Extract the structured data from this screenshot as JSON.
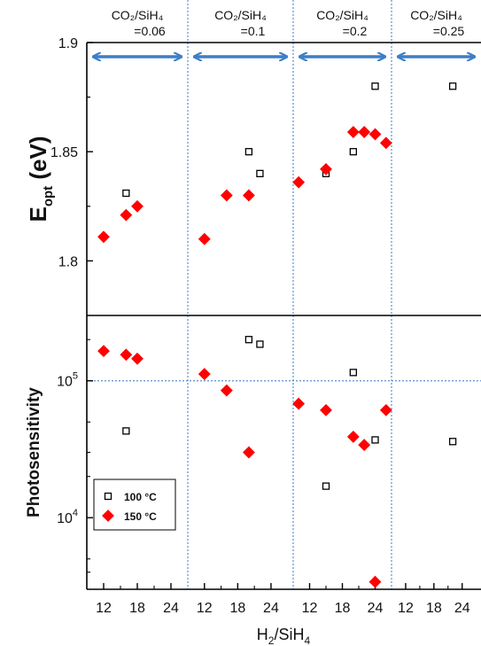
{
  "chart_data": {
    "type": "scatter",
    "x_axis_label_base": "H",
    "x_axis_label_sub": "2",
    "x_axis_label_sep": "/SiH",
    "x_axis_label_sub2": "4",
    "panels": [
      {
        "label_line1": "CO₂/SiH₄",
        "label_line2": "=0.06",
        "x_ticks": [
          "12",
          "18",
          "24"
        ],
        "x_range": [
          9,
          27
        ]
      },
      {
        "label_line1": "CO₂/SiH₄",
        "label_line2": "=0.1",
        "x_ticks": [
          "12",
          "18",
          "24"
        ],
        "x_range": [
          9,
          28
        ]
      },
      {
        "label_line1": "CO₂/SiH₄",
        "label_line2": "=0.2",
        "x_ticks": [
          "12",
          "18",
          "24"
        ],
        "x_range": [
          9,
          27
        ]
      },
      {
        "label_line1": "CO₂/SiH₄",
        "label_line2": "=0.25",
        "x_ticks": [
          "12",
          "18",
          "24"
        ],
        "x_range": [
          9,
          28
        ]
      }
    ],
    "top": {
      "ylabel_main": "E",
      "ylabel_sub": "opt",
      "ylabel_unit": " (eV)",
      "ylim": [
        1.775,
        1.9
      ],
      "y_ticks": [
        "1.8",
        "1.85",
        "1.9"
      ],
      "y_tick_values": [
        1.8,
        1.85,
        1.9
      ],
      "series": [
        {
          "name": "100 °C",
          "marker": "open-square",
          "color": "#000000",
          "points": [
            {
              "panel": 0,
              "x": 16,
              "y": 1.831
            },
            {
              "panel": 1,
              "x": 20,
              "y": 1.85
            },
            {
              "panel": 1,
              "x": 22,
              "y": 1.84
            },
            {
              "panel": 2,
              "x": 15,
              "y": 1.84
            },
            {
              "panel": 2,
              "x": 20,
              "y": 1.85
            },
            {
              "panel": 2,
              "x": 24,
              "y": 1.88
            },
            {
              "panel": 3,
              "x": 22,
              "y": 1.88
            }
          ]
        },
        {
          "name": "150 °C",
          "marker": "filled-diamond",
          "color": "#ff0000",
          "points": [
            {
              "panel": 0,
              "x": 12,
              "y": 1.811
            },
            {
              "panel": 0,
              "x": 16,
              "y": 1.821
            },
            {
              "panel": 0,
              "x": 18,
              "y": 1.825
            },
            {
              "panel": 1,
              "x": 12,
              "y": 1.81
            },
            {
              "panel": 1,
              "x": 16,
              "y": 1.83
            },
            {
              "panel": 1,
              "x": 20,
              "y": 1.83
            },
            {
              "panel": 2,
              "x": 10,
              "y": 1.836
            },
            {
              "panel": 2,
              "x": 15,
              "y": 1.842
            },
            {
              "panel": 2,
              "x": 20,
              "y": 1.859
            },
            {
              "panel": 2,
              "x": 22,
              "y": 1.859
            },
            {
              "panel": 2,
              "x": 24,
              "y": 1.858
            },
            {
              "panel": 2,
              "x": 26,
              "y": 1.854
            }
          ]
        }
      ]
    },
    "bottom": {
      "ylabel": "Photosensitivity",
      "yscale": "log",
      "ylim": [
        3000,
        300000
      ],
      "y_ticks_base": [
        "10",
        "10"
      ],
      "y_ticks_exp": [
        "5",
        "4"
      ],
      "y_tick_values": [
        100000,
        10000
      ],
      "series": [
        {
          "name": "100 °C",
          "marker": "open-square",
          "color": "#000000",
          "points": [
            {
              "panel": 0,
              "x": 16,
              "y": 43000
            },
            {
              "panel": 1,
              "x": 20,
              "y": 200000
            },
            {
              "panel": 1,
              "x": 22,
              "y": 185000
            },
            {
              "panel": 2,
              "x": 15,
              "y": 17000
            },
            {
              "panel": 2,
              "x": 20,
              "y": 115000
            },
            {
              "panel": 2,
              "x": 24,
              "y": 37000
            },
            {
              "panel": 3,
              "x": 22,
              "y": 36000
            }
          ]
        },
        {
          "name": "150 °C",
          "marker": "filled-diamond",
          "color": "#ff0000",
          "points": [
            {
              "panel": 0,
              "x": 12,
              "y": 165000
            },
            {
              "panel": 0,
              "x": 16,
              "y": 155000
            },
            {
              "panel": 0,
              "x": 18,
              "y": 145000
            },
            {
              "panel": 1,
              "x": 12,
              "y": 112000
            },
            {
              "panel": 1,
              "x": 16,
              "y": 85000
            },
            {
              "panel": 1,
              "x": 20,
              "y": 30000
            },
            {
              "panel": 2,
              "x": 10,
              "y": 68000
            },
            {
              "panel": 2,
              "x": 15,
              "y": 61000
            },
            {
              "panel": 2,
              "x": 20,
              "y": 39000
            },
            {
              "panel": 2,
              "x": 22,
              "y": 34000
            },
            {
              "panel": 2,
              "x": 24,
              "y": 3400
            },
            {
              "panel": 2,
              "x": 26,
              "y": 61000
            }
          ]
        }
      ]
    },
    "legend": {
      "placement": "lower-left of bottom panel",
      "entries": [
        {
          "label": "100 °C",
          "marker": "open-square"
        },
        {
          "label": "150 °C",
          "marker": "filled-diamond"
        }
      ]
    },
    "colors": {
      "arrow": "#3d7fc7",
      "divider": "#5b8fd1",
      "marker_150": "#ff0000",
      "marker_100": "#000000"
    }
  }
}
